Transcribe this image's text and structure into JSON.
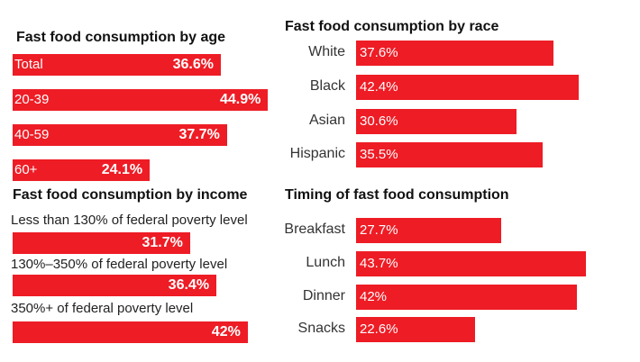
{
  "colors": {
    "bar": "#ee1c25"
  },
  "chart_data": [
    {
      "type": "bar",
      "orientation": "horizontal",
      "title": "Fast food consumption by age",
      "categories": [
        "Total",
        "20-39",
        "40-59",
        "60+"
      ],
      "values": [
        36.6,
        44.9,
        37.7,
        24.1
      ],
      "labels": [
        "36.6%",
        "44.9%",
        "37.7%",
        "24.1%"
      ],
      "label_placement": "inside"
    },
    {
      "type": "bar",
      "orientation": "horizontal",
      "title": "Fast food consumption by income",
      "categories": [
        "Less than 130% of federal poverty level",
        "130%–350% of federal poverty level",
        "350%+ of federal poverty level"
      ],
      "values": [
        31.7,
        36.4,
        42
      ],
      "labels": [
        "31.7%",
        "36.4%",
        "42%"
      ],
      "label_placement": "above"
    },
    {
      "type": "bar",
      "orientation": "horizontal",
      "title": "Fast food consumption by race",
      "categories": [
        "White",
        "Black",
        "Asian",
        "Hispanic"
      ],
      "values": [
        37.6,
        42.4,
        30.6,
        35.5
      ],
      "labels": [
        "37.6%",
        "42.4%",
        "30.6%",
        "35.5%"
      ],
      "label_placement": "left"
    },
    {
      "type": "bar",
      "orientation": "horizontal",
      "title": "Timing of fast food consumption",
      "categories": [
        "Breakfast",
        "Lunch",
        "Dinner",
        "Snacks"
      ],
      "values": [
        27.7,
        43.7,
        42,
        22.6
      ],
      "labels": [
        "27.7%",
        "43.7%",
        "42%",
        "22.6%"
      ],
      "label_placement": "left"
    }
  ]
}
